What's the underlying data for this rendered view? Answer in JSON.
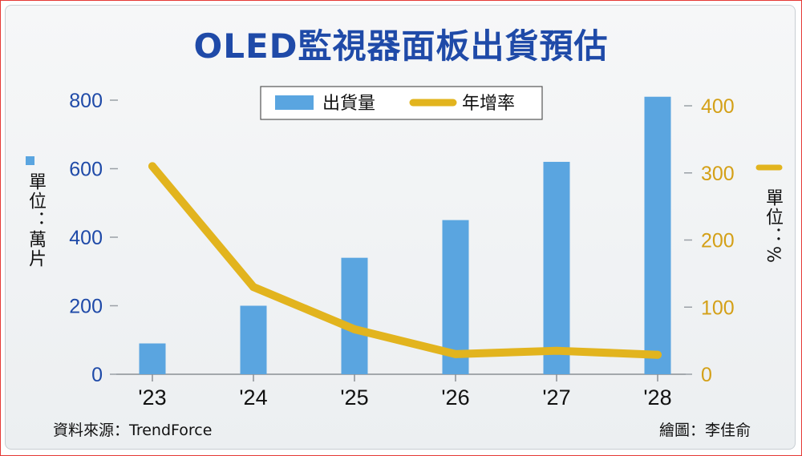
{
  "title": "OLED監視器面板出貨預估",
  "source": "資料來源：TrendForce",
  "credit": "繪圖：李佳俞",
  "left_unit": "單位：萬片",
  "right_unit": "單位：%",
  "colors": {
    "bar": "#5aa5e0",
    "line": "#e2b41e",
    "left_axis": "#1f4aa8",
    "right_axis": "#d4a017"
  },
  "chart_data": {
    "type": "bar",
    "categories": [
      "'23",
      "'24",
      "'25",
      "'26",
      "'27",
      "'28"
    ],
    "series": [
      {
        "name": "出貨量",
        "type": "bar",
        "axis": "left",
        "values": [
          90,
          200,
          340,
          450,
          620,
          810
        ]
      },
      {
        "name": "年增率",
        "type": "line",
        "axis": "right",
        "values": [
          310,
          130,
          67,
          30,
          35,
          29
        ]
      }
    ],
    "left_axis": {
      "ticks": [
        "0",
        "200",
        "400",
        "600",
        "800"
      ],
      "range": [
        0,
        800
      ]
    },
    "right_axis": {
      "ticks": [
        "0",
        "100",
        "200",
        "300",
        "400"
      ],
      "range": [
        0,
        400
      ]
    },
    "legend": {
      "position": "top-center",
      "entries": [
        "出貨量",
        "年增率"
      ]
    },
    "grid": false
  }
}
